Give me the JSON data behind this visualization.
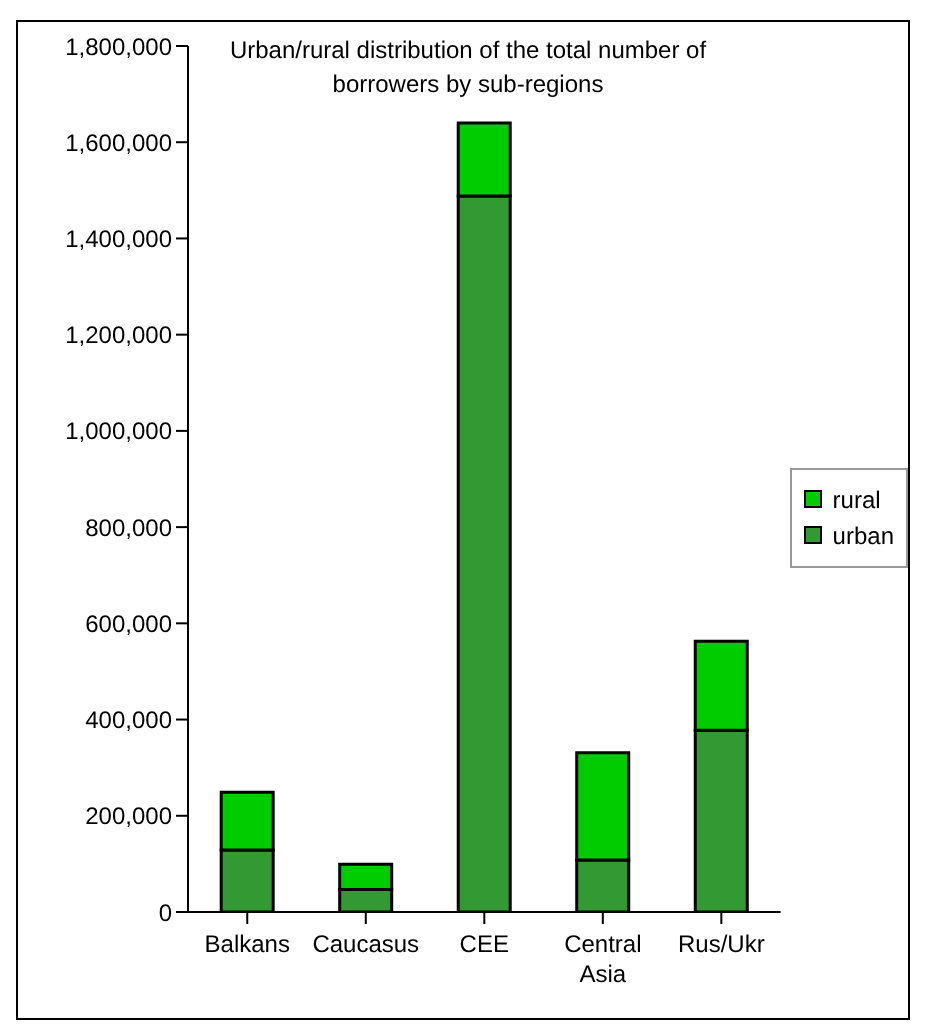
{
  "chart_data": {
    "type": "bar",
    "title": "Urban/rural distribution of the total number of borrowers by sub-regions",
    "categories": [
      "Balkans",
      "Caucasus",
      "CEE",
      "Central Asia",
      "Rus/Ukr"
    ],
    "stacked": true,
    "series": [
      {
        "name": "urban",
        "color": "#339933",
        "values": [
          129000,
          47000,
          1488000,
          108000,
          378000
        ]
      },
      {
        "name": "rural",
        "color": "#00cc00",
        "values": [
          120000,
          52000,
          152000,
          223000,
          185000
        ]
      }
    ],
    "ylim": [
      0,
      1800000
    ],
    "yticks": [
      0,
      {
        "value": 200000,
        "label": "200,000"
      },
      {
        "value": 400000,
        "label": "400,000"
      },
      {
        "value": 600000,
        "label": "600,000"
      },
      {
        "value": 800000,
        "label": "800,000"
      },
      {
        "value": 1000000,
        "label": "1,000,000"
      },
      {
        "value": 1200000,
        "label": "1,200,000"
      },
      {
        "value": 1400000,
        "label": "1,400,000"
      },
      {
        "value": 1600000,
        "label": "1,600,000"
      },
      {
        "value": 1800000,
        "label": "1,800,000"
      }
    ],
    "grid": false,
    "legend": "right"
  }
}
